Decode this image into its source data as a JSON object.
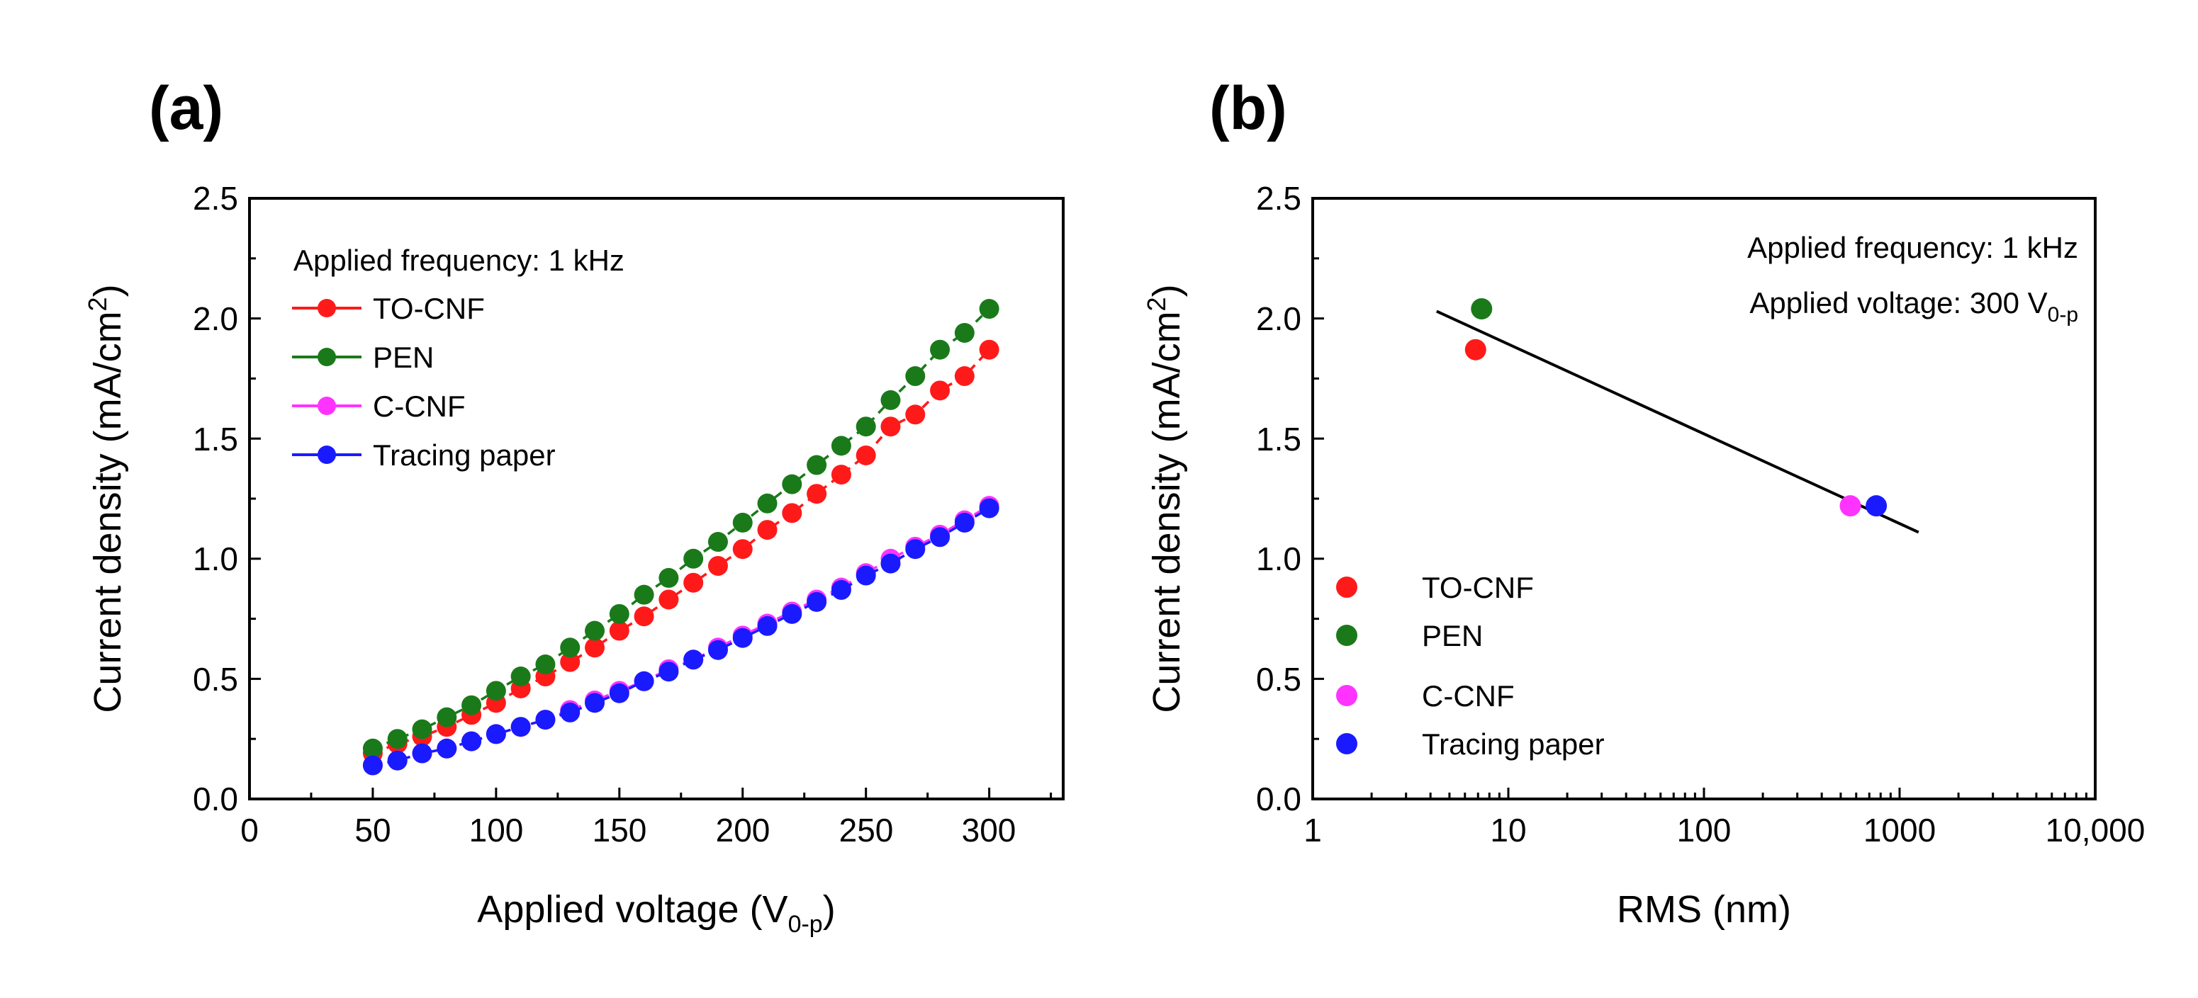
{
  "figure": {
    "panels": [
      {
        "label": "(a)",
        "xlabel_main": "Applied voltage (V",
        "xlabel_sub": "0-p",
        "xlabel_end": ")",
        "ylabel_main": "Current density (mA/cm",
        "ylabel_sup": "2",
        "ylabel_end": ")",
        "annotation": "Applied frequency: 1 kHz",
        "x_tick_labels": [
          "0",
          "50",
          "100",
          "150",
          "200",
          "250",
          "300"
        ],
        "y_tick_labels": [
          "0.0",
          "0.5",
          "1.0",
          "1.5",
          "2.0",
          "2.5"
        ]
      },
      {
        "label": "(b)",
        "xlabel": "RMS (nm)",
        "ylabel_main": "Current density (mA/cm",
        "ylabel_sup": "2",
        "ylabel_end": ")",
        "annotation_1": "Applied frequency: 1 kHz",
        "annotation_2_main": "Applied voltage: 300 V",
        "annotation_2_sub": "0-p",
        "x_tick_labels": [
          "1",
          "10",
          "100",
          "1000",
          "10,000"
        ],
        "y_tick_labels": [
          "0.0",
          "0.5",
          "1.0",
          "1.5",
          "2.0",
          "2.5"
        ]
      }
    ]
  },
  "chart_data": [
    {
      "type": "line",
      "title": "(a)",
      "xlabel": "Applied voltage (V0-p)",
      "ylabel": "Current density (mA/cm2)",
      "xlim": [
        0,
        330
      ],
      "ylim": [
        0,
        2.5
      ],
      "x_ticks": [
        0,
        50,
        100,
        150,
        200,
        250,
        300
      ],
      "y_ticks": [
        0,
        0.5,
        1.0,
        1.5,
        2.0,
        2.5
      ],
      "legend_position": "top-left",
      "x": [
        50,
        60,
        70,
        80,
        90,
        100,
        110,
        120,
        130,
        140,
        150,
        160,
        170,
        180,
        190,
        200,
        210,
        220,
        230,
        240,
        250,
        260,
        270,
        280,
        290,
        300
      ],
      "series": [
        {
          "name": "TO-CNF",
          "color": "#ff1a1a",
          "values": [
            0.19,
            0.23,
            0.26,
            0.3,
            0.35,
            0.4,
            0.46,
            0.51,
            0.57,
            0.63,
            0.7,
            0.76,
            0.83,
            0.9,
            0.97,
            1.04,
            1.12,
            1.19,
            1.27,
            1.35,
            1.43,
            1.55,
            1.6,
            1.7,
            1.76,
            1.87
          ]
        },
        {
          "name": "PEN",
          "color": "#1a7a1a",
          "values": [
            0.21,
            0.25,
            0.29,
            0.34,
            0.39,
            0.45,
            0.51,
            0.56,
            0.63,
            0.7,
            0.77,
            0.85,
            0.92,
            1.0,
            1.07,
            1.15,
            1.23,
            1.31,
            1.39,
            1.47,
            1.55,
            1.66,
            1.76,
            1.87,
            1.94,
            2.04
          ]
        },
        {
          "name": "C-CNF",
          "color": "#ff33ff",
          "values": [
            0.14,
            0.16,
            0.19,
            0.21,
            0.24,
            0.27,
            0.3,
            0.33,
            0.37,
            0.41,
            0.45,
            0.49,
            0.54,
            0.58,
            0.63,
            0.68,
            0.73,
            0.78,
            0.83,
            0.88,
            0.94,
            1.0,
            1.05,
            1.1,
            1.16,
            1.22
          ]
        },
        {
          "name": "Tracing paper",
          "color": "#1a1aff",
          "values": [
            0.14,
            0.16,
            0.19,
            0.21,
            0.24,
            0.27,
            0.3,
            0.33,
            0.36,
            0.4,
            0.44,
            0.49,
            0.53,
            0.58,
            0.62,
            0.67,
            0.72,
            0.77,
            0.82,
            0.87,
            0.93,
            0.98,
            1.04,
            1.09,
            1.15,
            1.21
          ]
        }
      ]
    },
    {
      "type": "scatter",
      "title": "(b)",
      "xlabel": "RMS (nm)",
      "ylabel": "Current density (mA/cm2)",
      "x_scale": "log",
      "xlim": [
        1,
        10000
      ],
      "ylim": [
        0,
        2.5
      ],
      "x_ticks": [
        1,
        10,
        100,
        1000,
        10000
      ],
      "y_ticks": [
        0,
        0.5,
        1.0,
        1.5,
        2.0,
        2.5
      ],
      "legend_position": "bottom-left",
      "series": [
        {
          "name": "TO-CNF",
          "color": "#ff1a1a",
          "x": [
            6.8
          ],
          "y": [
            1.87
          ]
        },
        {
          "name": "PEN",
          "color": "#1a7a1a",
          "x": [
            7.3
          ],
          "y": [
            2.04
          ]
        },
        {
          "name": "C-CNF",
          "color": "#ff33ff",
          "x": [
            560
          ],
          "y": [
            1.22
          ]
        },
        {
          "name": "Tracing paper",
          "color": "#1a1aff",
          "x": [
            760
          ],
          "y": [
            1.22
          ]
        }
      ],
      "fit_line": {
        "x": [
          4.3,
          1250
        ],
        "y": [
          2.03,
          1.11
        ],
        "color": "#000000"
      }
    }
  ]
}
